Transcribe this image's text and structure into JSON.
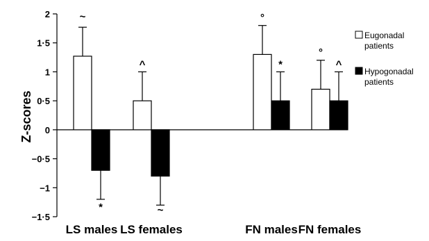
{
  "chart_data": {
    "type": "bar",
    "ylabel": "Z-scores",
    "ylim": [
      -1.5,
      2
    ],
    "yticks": [
      {
        "value": 2,
        "label": "2"
      },
      {
        "value": 1.5,
        "label": "1·5"
      },
      {
        "value": 1,
        "label": "1"
      },
      {
        "value": 0.5,
        "label": "0·5"
      },
      {
        "value": 0,
        "label": "0"
      },
      {
        "value": -0.5,
        "label": "−0·5"
      },
      {
        "value": -1,
        "label": "−1"
      },
      {
        "value": -1.5,
        "label": "−1·5"
      }
    ],
    "categories": [
      "LS males",
      "LS females",
      "FN males",
      "FN females"
    ],
    "series": [
      {
        "name": "Eugonadal patients",
        "color": "#ffffff",
        "values": [
          1.27,
          0.5,
          1.3,
          0.7
        ],
        "errors": [
          0.5,
          0.5,
          0.5,
          0.5
        ],
        "annotations": [
          "~",
          "^",
          "°",
          "°"
        ]
      },
      {
        "name": "Hypogonadal patients",
        "color": "#000000",
        "values": [
          -0.7,
          -0.8,
          0.5,
          0.5
        ],
        "errors": [
          0.5,
          0.5,
          0.5,
          0.5
        ],
        "annotations": [
          "*",
          "~",
          "*",
          "^"
        ]
      }
    ],
    "legend": {
      "position": "right",
      "entries": [
        {
          "lines": [
            "Eugonadal",
            "patients"
          ]
        },
        {
          "lines": [
            "Hypogonadal",
            "patients"
          ]
        }
      ]
    },
    "grid": false
  }
}
